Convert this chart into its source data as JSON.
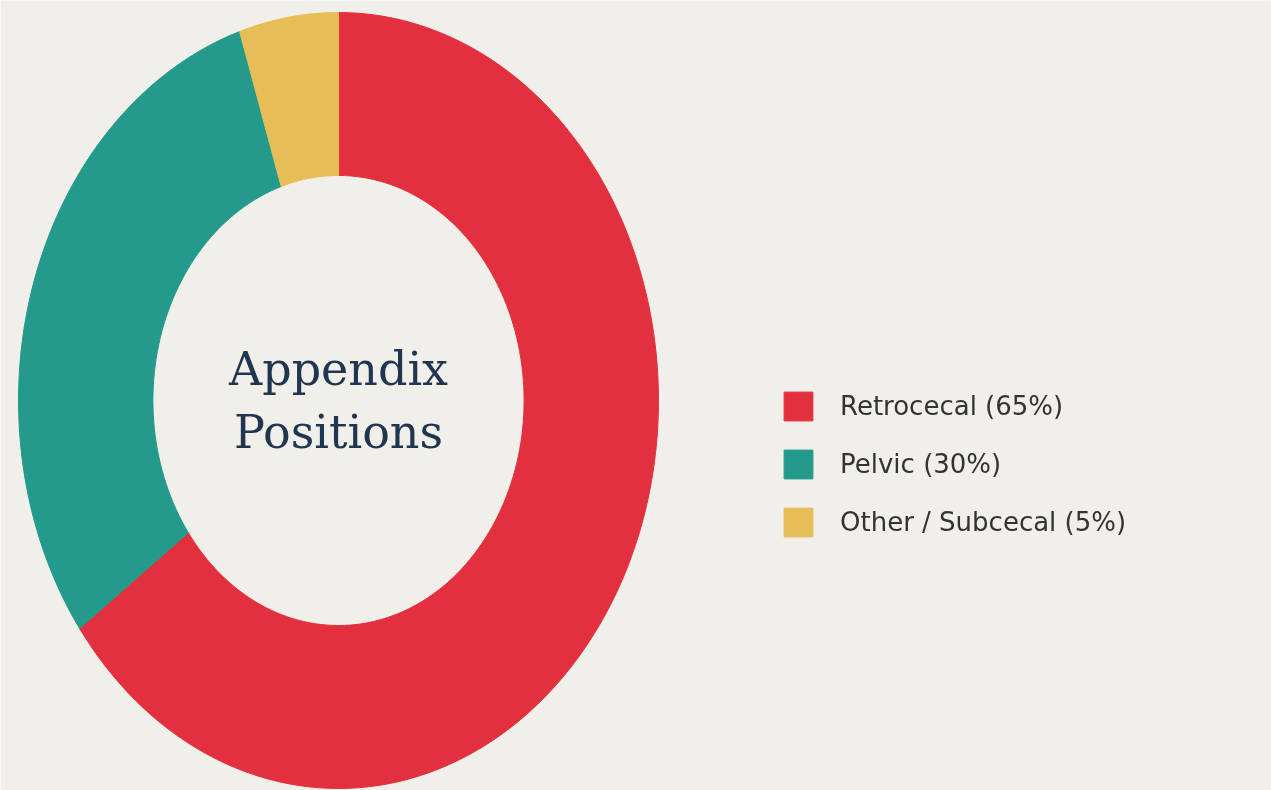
{
  "chart_data": {
    "type": "donut",
    "title": "Appendix\nPositions",
    "categories": [
      "Retrocecal (65%)",
      "Pelvic (30%)",
      "Other / Subcecal (5%)"
    ],
    "values": [
      65,
      30,
      5
    ],
    "colors": [
      "#e3303f",
      "#239a8b",
      "#e7bd57"
    ],
    "legend": "right"
  }
}
